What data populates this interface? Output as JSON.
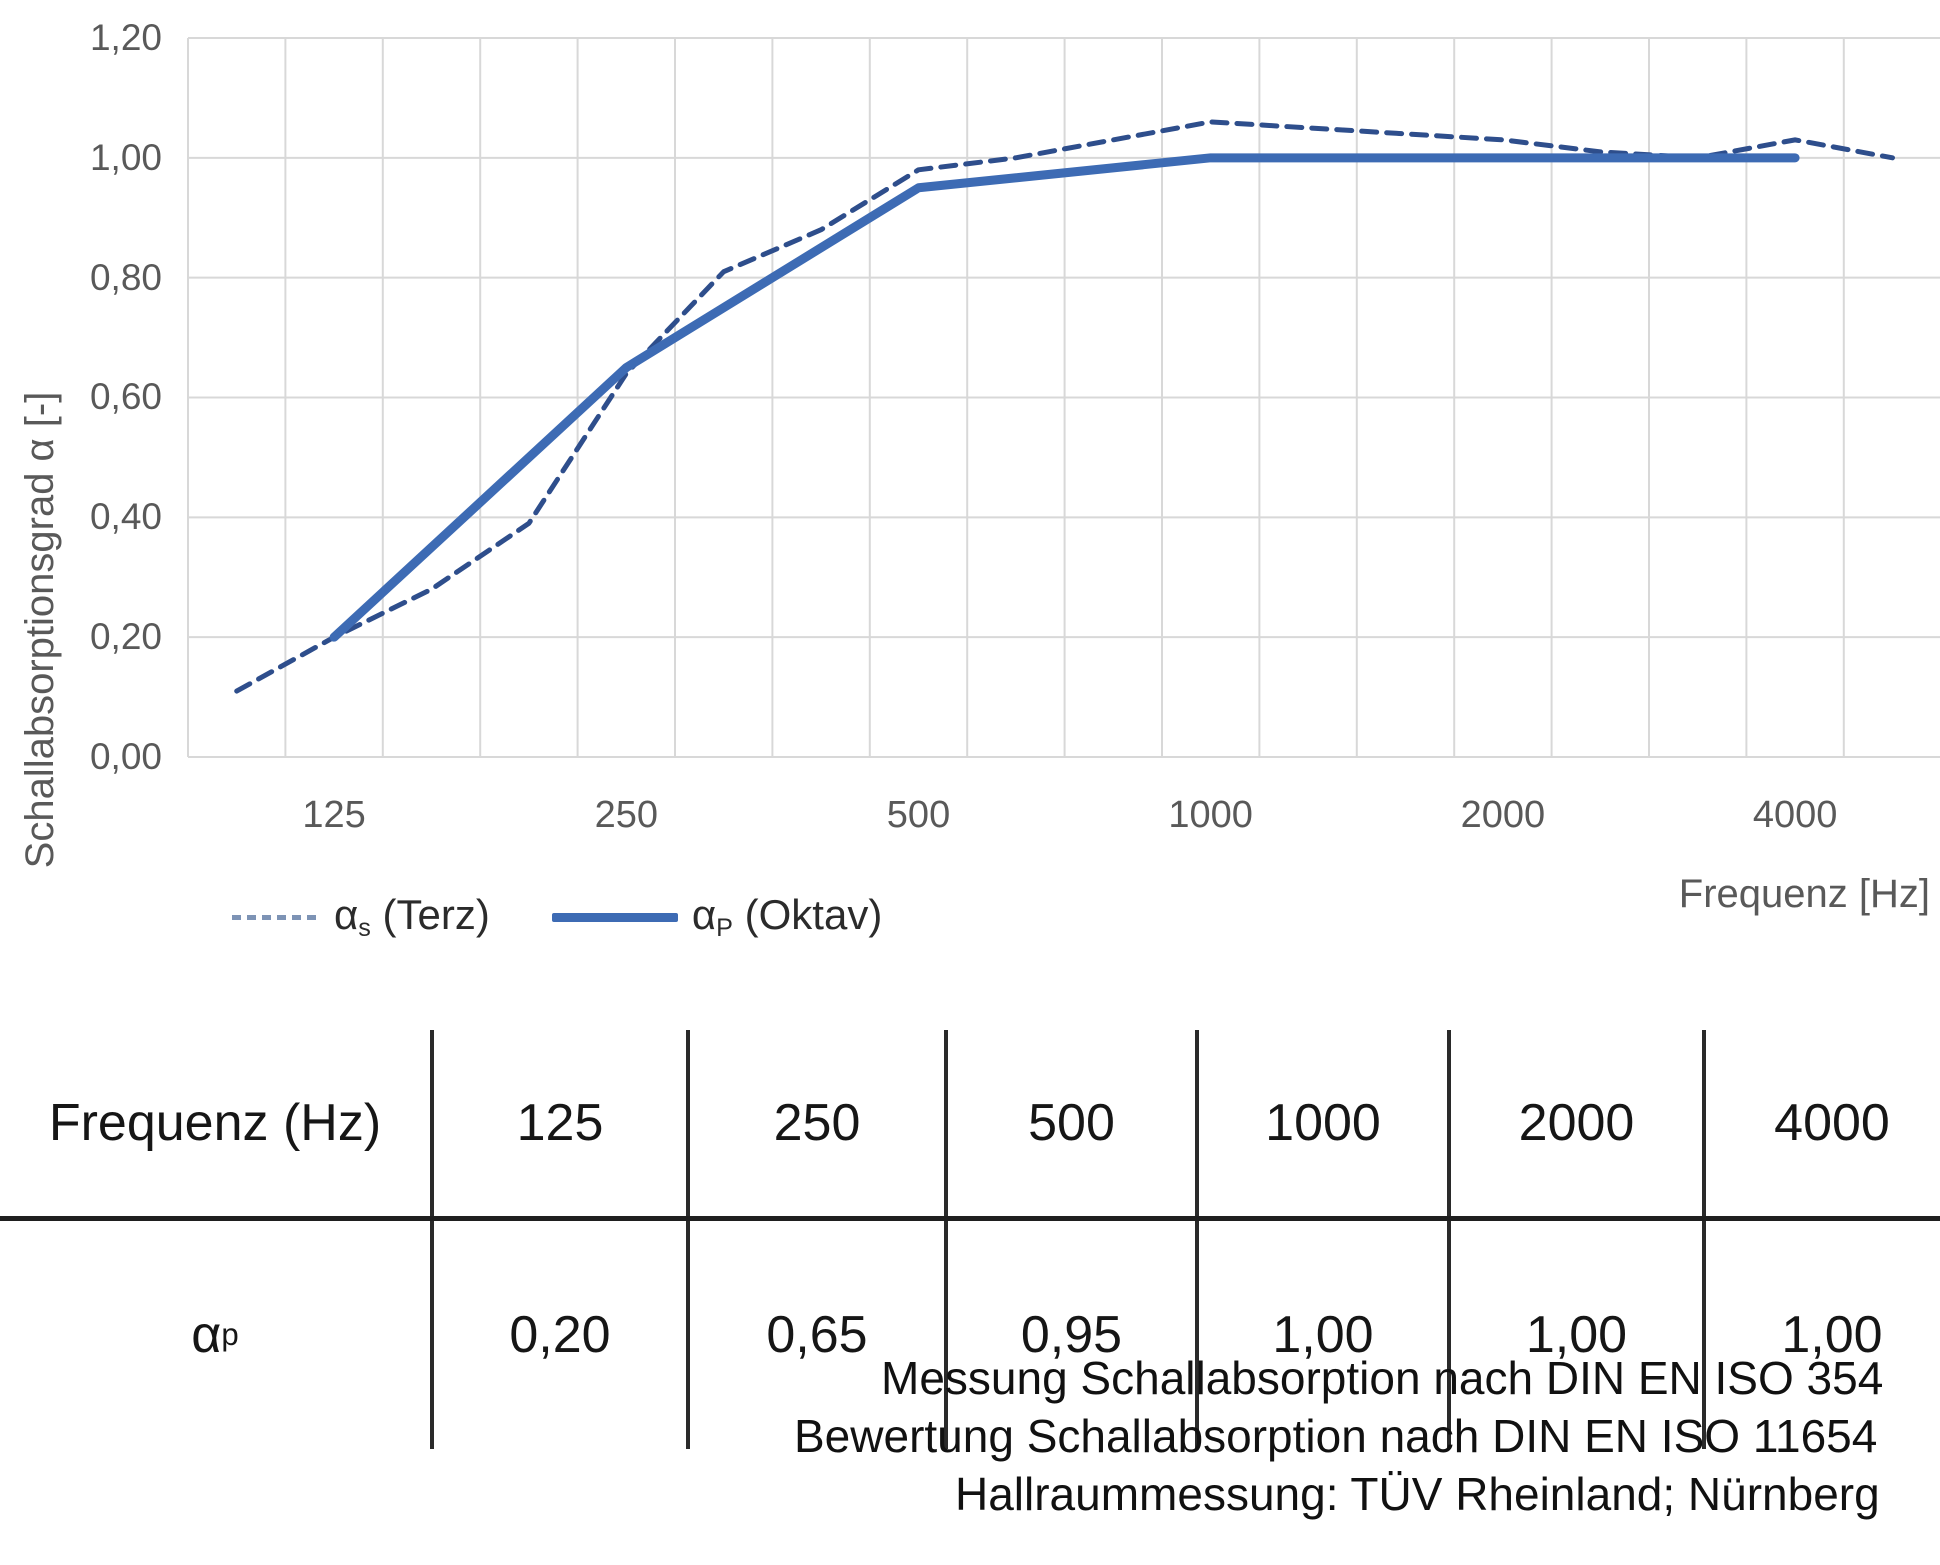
{
  "chart": {
    "y_axis_title": "Schallabsorptionsgrad α [-]",
    "x_axis_title": "Frequenz [Hz]",
    "y_ticks": [
      "0,00",
      "0,20",
      "0,40",
      "0,60",
      "0,80",
      "1,00",
      "1,20"
    ],
    "x_ticks": [
      "125",
      "250",
      "500",
      "1000",
      "2000",
      "4000"
    ],
    "colors": {
      "solid_line": "#3d6bb4",
      "dashed_line": "#2e4e8c",
      "gridline": "#d8d8d8",
      "axis_text": "#595959"
    },
    "legend": [
      {
        "swatch": "dashed-line-swatch",
        "alpha": "α",
        "sub": "s",
        "label": " (Terz)"
      },
      {
        "swatch": "solid-line-swatch",
        "alpha": "α",
        "sub": "P",
        "label": " (Oktav)"
      }
    ]
  },
  "chart_data": {
    "type": "line",
    "title": "",
    "xlabel": "Frequenz [Hz]",
    "ylabel": "Schallabsorptionsgrad α [-]",
    "ylim": [
      0,
      1.2
    ],
    "y_tick_step": 0.2,
    "grid": true,
    "x_scale": "third-octave categories",
    "categories": [
      100,
      125,
      160,
      200,
      250,
      315,
      400,
      500,
      630,
      800,
      1000,
      1250,
      1600,
      2000,
      2500,
      3150,
      4000,
      5000
    ],
    "x_tick_labels_at": [
      125,
      250,
      500,
      1000,
      2000,
      4000
    ],
    "series": [
      {
        "name": "αs (Terz)",
        "style": "dashed",
        "x": [
          100,
          125,
          160,
          200,
          250,
          315,
          400,
          500,
          630,
          800,
          1000,
          1250,
          1600,
          2000,
          2500,
          3150,
          4000,
          5000
        ],
        "values": [
          0.11,
          0.2,
          0.28,
          0.39,
          0.64,
          0.81,
          0.88,
          0.98,
          1.0,
          1.03,
          1.06,
          1.05,
          1.04,
          1.03,
          1.01,
          1.0,
          1.03,
          1.0
        ]
      },
      {
        "name": "αP (Oktav)",
        "style": "solid",
        "x": [
          125,
          250,
          500,
          1000,
          2000,
          4000
        ],
        "values": [
          0.2,
          0.65,
          0.95,
          1.0,
          1.0,
          1.0
        ]
      }
    ],
    "legend_position": "bottom-left"
  },
  "table": {
    "header": [
      "Frequenz (Hz)",
      "125",
      "250",
      "500",
      "1000",
      "2000",
      "4000"
    ],
    "row_label": {
      "alpha": "α",
      "sub": "p"
    },
    "values": [
      "0,20",
      "0,65",
      "0,95",
      "1,00",
      "1,00",
      "1,00"
    ]
  },
  "footer_lines": [
    "Messung Schallabsorption nach DIN EN ISO 354",
    "Bewertung Schallabsorption nach DIN EN ISO 11654",
    "Hallraummessung: TÜV Rheinland; Nürnberg"
  ]
}
